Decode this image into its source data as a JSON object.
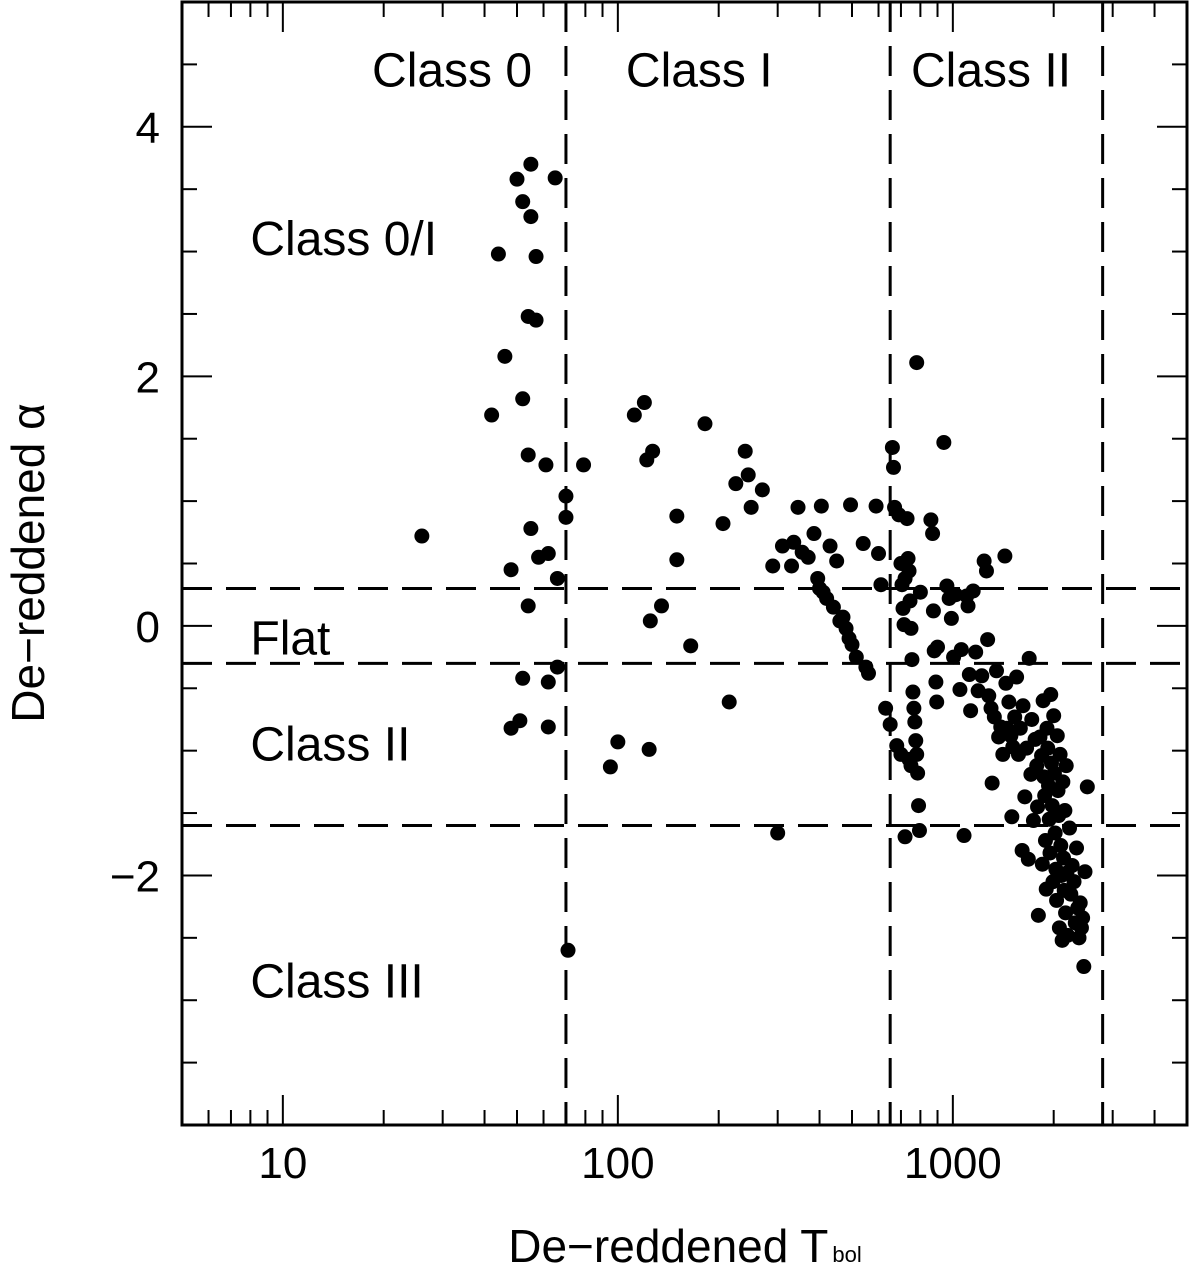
{
  "chart_data": {
    "type": "scatter",
    "xlabel": "De−reddened T",
    "xlabel_sub": "bol",
    "ylabel": "De−reddened α",
    "xscale": "log",
    "xlim": [
      5,
      5000
    ],
    "ylim": [
      -4,
      5
    ],
    "x_ticks": [
      {
        "value": 10,
        "label": "10"
      },
      {
        "value": 100,
        "label": "100"
      },
      {
        "value": 1000,
        "label": "1000"
      }
    ],
    "y_ticks": [
      {
        "value": -2,
        "label": "−2"
      },
      {
        "value": 0,
        "label": "0"
      },
      {
        "value": 2,
        "label": "2"
      },
      {
        "value": 4,
        "label": "4"
      }
    ],
    "tbol_boundaries": [
      70,
      650,
      2800
    ],
    "alpha_boundaries": [
      0.3,
      -0.3,
      -1.6
    ],
    "tbol_class_labels": [
      {
        "text": "Class 0",
        "x": 32,
        "y": 4.45
      },
      {
        "text": "Class I",
        "x": 175,
        "y": 4.45
      },
      {
        "text": "Class II",
        "x": 1300,
        "y": 4.45
      }
    ],
    "alpha_class_labels": [
      {
        "text": "Class 0/I",
        "x": 8,
        "y": 3.1
      },
      {
        "text": "Flat",
        "x": 8,
        "y": -0.1
      },
      {
        "text": "Class II",
        "x": 8,
        "y": -0.95
      },
      {
        "text": "Class III",
        "x": 8,
        "y": -2.85
      }
    ],
    "series": [
      {
        "points": [
          [
            26,
            0.72
          ],
          [
            44,
            2.98
          ],
          [
            46,
            2.16
          ],
          [
            42,
            1.69
          ],
          [
            48,
            0.45
          ],
          [
            50,
            3.58
          ],
          [
            52,
            3.4
          ],
          [
            52,
            1.82
          ],
          [
            54,
            2.48
          ],
          [
            55,
            3.28
          ],
          [
            55,
            3.7
          ],
          [
            57,
            2.96
          ],
          [
            57,
            2.45
          ],
          [
            54,
            1.37
          ],
          [
            55,
            0.78
          ],
          [
            58,
            0.55
          ],
          [
            61,
            1.29
          ],
          [
            62,
            0.58
          ],
          [
            66,
            0.38
          ],
          [
            54,
            0.16
          ],
          [
            65,
            3.59
          ],
          [
            70,
            1.04
          ],
          [
            70,
            0.87
          ],
          [
            52,
            -0.42
          ],
          [
            51,
            -0.76
          ],
          [
            48,
            -0.82
          ],
          [
            62,
            -0.45
          ],
          [
            66,
            -0.33
          ],
          [
            62,
            -0.81
          ],
          [
            71,
            -2.6
          ],
          [
            79,
            1.29
          ],
          [
            95,
            -1.13
          ],
          [
            100,
            -0.93
          ],
          [
            112,
            1.69
          ],
          [
            120,
            1.79
          ],
          [
            122,
            1.33
          ],
          [
            127,
            1.4
          ],
          [
            125,
            0.04
          ],
          [
            135,
            0.16
          ],
          [
            124,
            -0.99
          ],
          [
            150,
            0.88
          ],
          [
            150,
            0.53
          ],
          [
            165,
            -0.16
          ],
          [
            182,
            1.62
          ],
          [
            206,
            0.82
          ],
          [
            215,
            -0.61
          ],
          [
            225,
            1.14
          ],
          [
            240,
            1.4
          ],
          [
            245,
            1.21
          ],
          [
            250,
            0.95
          ],
          [
            270,
            1.09
          ],
          [
            290,
            0.48
          ],
          [
            300,
            -1.66
          ],
          [
            310,
            0.64
          ],
          [
            330,
            0.48
          ],
          [
            335,
            0.67
          ],
          [
            345,
            0.95
          ],
          [
            355,
            0.59
          ],
          [
            370,
            0.55
          ],
          [
            385,
            0.74
          ],
          [
            395,
            0.38
          ],
          [
            400,
            0.3
          ],
          [
            405,
            0.96
          ],
          [
            410,
            0.27
          ],
          [
            420,
            0.22
          ],
          [
            430,
            0.64
          ],
          [
            440,
            0.15
          ],
          [
            450,
            0.52
          ],
          [
            460,
            0.04
          ],
          [
            470,
            0.07
          ],
          [
            480,
            -0.02
          ],
          [
            490,
            -0.1
          ],
          [
            495,
            0.97
          ],
          [
            500,
            -0.15
          ],
          [
            515,
            -0.25
          ],
          [
            540,
            0.66
          ],
          [
            550,
            -0.33
          ],
          [
            560,
            -0.38
          ],
          [
            590,
            0.96
          ],
          [
            600,
            0.58
          ],
          [
            610,
            0.33
          ],
          [
            630,
            -0.66
          ],
          [
            650,
            -0.79
          ],
          [
            680,
            -0.96
          ],
          [
            700,
            -1.03
          ],
          [
            720,
            0.38
          ],
          [
            740,
            -1.07
          ],
          [
            750,
            -1.12
          ],
          [
            660,
            1.43
          ],
          [
            665,
            1.27
          ],
          [
            670,
            0.95
          ],
          [
            690,
            0.89
          ],
          [
            700,
            0.5
          ],
          [
            705,
            0.33
          ],
          [
            710,
            0.14
          ],
          [
            715,
            0.01
          ],
          [
            720,
            -1.69
          ],
          [
            730,
            0.86
          ],
          [
            735,
            0.54
          ],
          [
            740,
            0.44
          ],
          [
            745,
            0.2
          ],
          [
            750,
            -0.02
          ],
          [
            755,
            -0.27
          ],
          [
            760,
            -0.53
          ],
          [
            765,
            -0.66
          ],
          [
            770,
            -0.77
          ],
          [
            775,
            -0.92
          ],
          [
            780,
            -1.03
          ],
          [
            785,
            -1.18
          ],
          [
            790,
            -1.44
          ],
          [
            795,
            -1.64
          ],
          [
            780,
            2.11
          ],
          [
            800,
            0.27
          ],
          [
            860,
            0.85
          ],
          [
            870,
            0.74
          ],
          [
            875,
            0.12
          ],
          [
            880,
            -0.2
          ],
          [
            890,
            -0.45
          ],
          [
            895,
            -0.61
          ],
          [
            900,
            -0.17
          ],
          [
            940,
            1.47
          ],
          [
            960,
            0.32
          ],
          [
            975,
            0.22
          ],
          [
            990,
            0.06
          ],
          [
            1005,
            -0.25
          ],
          [
            1020,
            0.25
          ],
          [
            1050,
            -0.51
          ],
          [
            1060,
            -0.19
          ],
          [
            1080,
            -1.68
          ],
          [
            1100,
            0.24
          ],
          [
            1110,
            0.16
          ],
          [
            1120,
            -0.39
          ],
          [
            1130,
            -0.68
          ],
          [
            1150,
            0.28
          ],
          [
            1170,
            -0.21
          ],
          [
            1190,
            -0.52
          ],
          [
            1220,
            -0.4
          ],
          [
            1240,
            0.52
          ],
          [
            1260,
            0.44
          ],
          [
            1270,
            -0.11
          ],
          [
            1280,
            -0.56
          ],
          [
            1300,
            -0.66
          ],
          [
            1310,
            -1.26
          ],
          [
            1330,
            -0.73
          ],
          [
            1350,
            -0.36
          ],
          [
            1370,
            -0.89
          ],
          [
            1390,
            -0.81
          ],
          [
            1410,
            -1.03
          ],
          [
            1430,
            0.56
          ],
          [
            1440,
            -0.46
          ],
          [
            1450,
            -0.82
          ],
          [
            1470,
            -0.61
          ],
          [
            1490,
            -0.88
          ],
          [
            1500,
            -1.53
          ],
          [
            1510,
            -0.97
          ],
          [
            1530,
            -0.73
          ],
          [
            1550,
            -0.41
          ],
          [
            1570,
            -1.03
          ],
          [
            1590,
            -0.82
          ],
          [
            1610,
            -1.8
          ],
          [
            1620,
            -0.64
          ],
          [
            1640,
            -1.37
          ],
          [
            1660,
            -0.98
          ],
          [
            1680,
            -1.87
          ],
          [
            1690,
            -0.26
          ],
          [
            1710,
            -1.19
          ],
          [
            1720,
            -0.75
          ],
          [
            1740,
            -1.56
          ],
          [
            1760,
            -0.91
          ],
          [
            1780,
            -1.12
          ],
          [
            1790,
            -1.45
          ],
          [
            1800,
            -2.32
          ],
          [
            1820,
            -0.89
          ],
          [
            1840,
            -1.04
          ],
          [
            1850,
            -1.91
          ],
          [
            1860,
            -0.6
          ],
          [
            1870,
            -1.21
          ],
          [
            1880,
            -1.36
          ],
          [
            1890,
            -1.72
          ],
          [
            1900,
            -2.11
          ],
          [
            1910,
            -0.82
          ],
          [
            1920,
            -0.98
          ],
          [
            1930,
            -1.28
          ],
          [
            1940,
            -1.55
          ],
          [
            1950,
            -1.82
          ],
          [
            1960,
            -0.55
          ],
          [
            1970,
            -1.1
          ],
          [
            1980,
            -1.44
          ],
          [
            1990,
            -2.05
          ],
          [
            2000,
            -0.72
          ],
          [
            2010,
            -1.18
          ],
          [
            2020,
            -1.66
          ],
          [
            2030,
            -1.95
          ],
          [
            2040,
            -2.2
          ],
          [
            2050,
            -0.88
          ],
          [
            2060,
            -1.32
          ],
          [
            2070,
            -1.52
          ],
          [
            2080,
            -2.42
          ],
          [
            2090,
            -1.03
          ],
          [
            2100,
            -1.76
          ],
          [
            2110,
            -2.0
          ],
          [
            2120,
            -2.52
          ],
          [
            2130,
            -1.25
          ],
          [
            2140,
            -1.86
          ],
          [
            2150,
            -2.12
          ],
          [
            2160,
            -1.48
          ],
          [
            2170,
            -2.3
          ],
          [
            2180,
            -1.12
          ],
          [
            2190,
            -1.98
          ],
          [
            2200,
            -2.48
          ],
          [
            2230,
            -1.62
          ],
          [
            2250,
            -2.15
          ],
          [
            2270,
            -1.92
          ],
          [
            2300,
            -2.05
          ],
          [
            2320,
            -2.38
          ],
          [
            2340,
            -1.78
          ],
          [
            2360,
            -2.26
          ],
          [
            2380,
            -2.5
          ],
          [
            2400,
            -2.22
          ],
          [
            2420,
            -2.42
          ],
          [
            2440,
            -2.34
          ],
          [
            2460,
            -2.73
          ],
          [
            2480,
            -1.97
          ],
          [
            2520,
            -1.29
          ]
        ]
      }
    ]
  }
}
